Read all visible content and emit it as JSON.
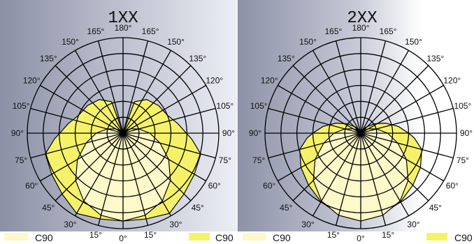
{
  "chart_data": [
    {
      "type": "polar",
      "title": "1XX",
      "angle_labels": [
        "180°",
        "165°",
        "165°",
        "150°",
        "150°",
        "135°",
        "135°",
        "120°",
        "120°",
        "105°",
        "105°",
        "90°",
        "90°",
        "75°",
        "75°",
        "60°",
        "60°",
        "45°",
        "45°",
        "30°",
        "30°",
        "15°",
        "15°",
        "0°"
      ],
      "series": [
        {
          "legend": "C90",
          "color": "#f5f26a",
          "angles": [
            0,
            15,
            30,
            45,
            60,
            75,
            85,
            90,
            100,
            112,
            128,
            145,
            160,
            180
          ],
          "values": [
            0.92,
            0.93,
            0.97,
            0.9,
            0.86,
            0.84,
            0.72,
            0.66,
            0.58,
            0.5,
            0.47,
            0.43,
            0.35,
            0.0
          ]
        },
        {
          "legend": "C90",
          "color": "#fff8c8",
          "angles": [
            0,
            15,
            30,
            45,
            60,
            75,
            90,
            105,
            120,
            135,
            150,
            165,
            180
          ],
          "values": [
            0.92,
            0.89,
            0.82,
            0.7,
            0.55,
            0.4,
            0.28,
            0.17,
            0.09,
            0.04,
            0.015,
            0.0,
            0.0
          ]
        }
      ]
    },
    {
      "type": "polar",
      "title": "2XX",
      "angle_labels": [
        "180°",
        "165°",
        "165°",
        "150°",
        "150°",
        "135°",
        "135°",
        "120°",
        "120°",
        "105°",
        "105°",
        "90°",
        "90°",
        "75°",
        "75°",
        "60°",
        "60°",
        "45°",
        "45°",
        "30°",
        "30°",
        "15°",
        "15°",
        "0°"
      ],
      "series": [
        {
          "legend": "C90",
          "color": "#f5f26a",
          "angles": [
            0,
            15,
            30,
            45,
            60,
            75,
            85,
            90,
            100,
            112,
            125,
            140,
            155,
            180
          ],
          "values": [
            0.92,
            0.88,
            0.83,
            0.77,
            0.72,
            0.66,
            0.56,
            0.5,
            0.4,
            0.28,
            0.17,
            0.08,
            0.02,
            0.0
          ]
        },
        {
          "legend": "C90",
          "color": "#fff8c8",
          "angles": [
            0,
            15,
            30,
            45,
            60,
            75,
            90,
            105,
            120,
            135,
            150,
            165,
            180
          ],
          "values": [
            0.92,
            0.89,
            0.82,
            0.7,
            0.55,
            0.4,
            0.28,
            0.17,
            0.09,
            0.04,
            0.015,
            0.0,
            0.0
          ]
        }
      ]
    }
  ],
  "legend": {
    "items": [
      {
        "label": "C90",
        "color": "#fff8c8"
      },
      {
        "label": "C90",
        "color": "#f5f26a"
      },
      {
        "label": "C90",
        "color": "#fff8c8"
      },
      {
        "label": "C90",
        "color": "#f5f26a"
      }
    ]
  }
}
